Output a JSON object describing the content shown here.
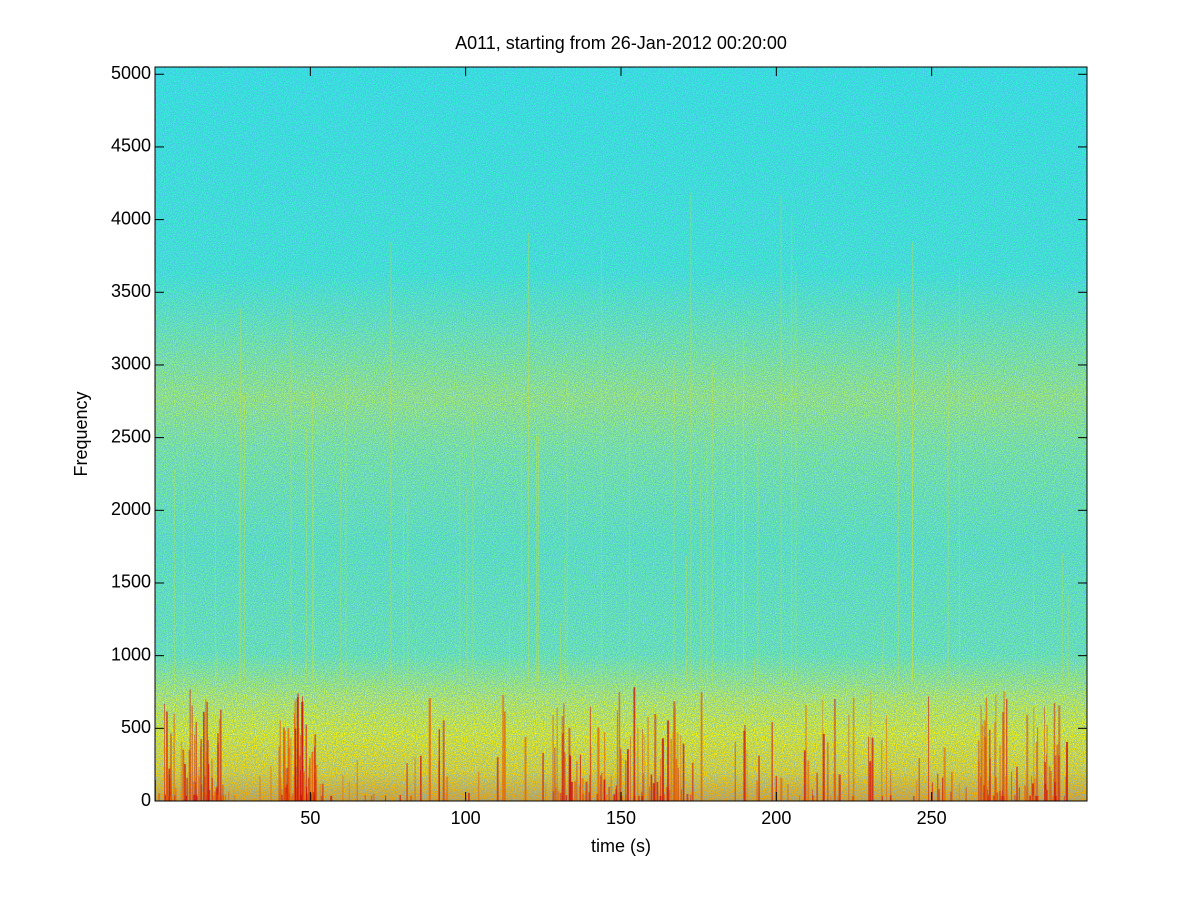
{
  "chart_data": {
    "type": "spectrogram",
    "title": "A011, starting from 26-Jan-2012 00:20:00",
    "xlabel": "time (s)",
    "ylabel": "Frequency",
    "xlim": [
      0,
      300
    ],
    "xticks": [
      50,
      100,
      150,
      200,
      250
    ],
    "ylim": [
      0,
      5050
    ],
    "yticks": [
      0,
      500,
      1000,
      1500,
      2000,
      2500,
      3000,
      3500,
      4000,
      4500,
      5000
    ]
  }
}
